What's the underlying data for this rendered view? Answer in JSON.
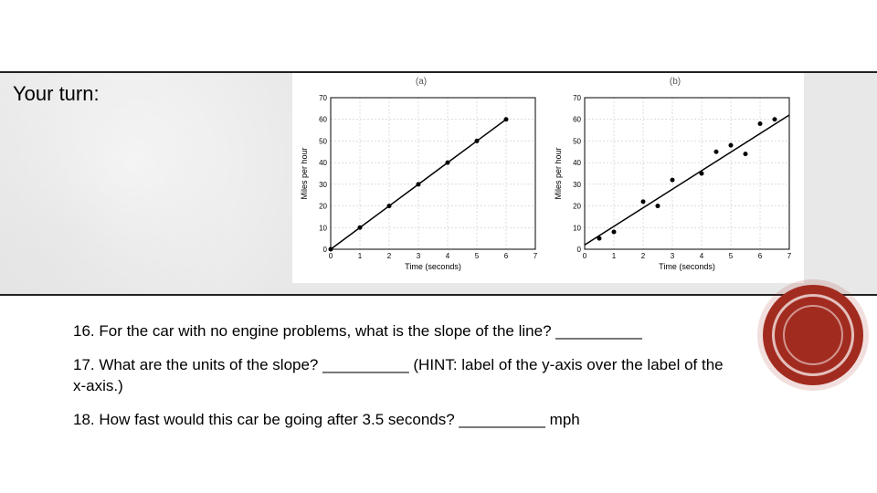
{
  "title": "Your turn:",
  "chart_a": {
    "type": "line",
    "panel_label": "(a)",
    "xlabel": "Time (seconds)",
    "ylabel": "Miles per hour",
    "xlim": [
      0,
      7
    ],
    "ylim": [
      0,
      70
    ],
    "xtick_step": 1,
    "ytick_step": 10,
    "xticks": [
      0,
      1,
      2,
      3,
      4,
      5,
      6,
      7
    ],
    "yticks": [
      0,
      10,
      20,
      30,
      40,
      50,
      60,
      70
    ],
    "line_color": "#000000",
    "marker_color": "#000000",
    "marker_size": 2.5,
    "line_width": 1.5,
    "background_color": "#ffffff",
    "grid_color": "#bbbbbb",
    "points": [
      {
        "x": 0,
        "y": 0
      },
      {
        "x": 1,
        "y": 10
      },
      {
        "x": 2,
        "y": 20
      },
      {
        "x": 3,
        "y": 30
      },
      {
        "x": 4,
        "y": 40
      },
      {
        "x": 5,
        "y": 50
      },
      {
        "x": 6,
        "y": 60
      }
    ]
  },
  "chart_b": {
    "type": "scatter-line",
    "panel_label": "(b)",
    "xlabel": "Time (seconds)",
    "ylabel": "Miles per hour",
    "xlim": [
      0,
      7
    ],
    "ylim": [
      0,
      70
    ],
    "xtick_step": 1,
    "ytick_step": 10,
    "xticks": [
      0,
      1,
      2,
      3,
      4,
      5,
      6,
      7
    ],
    "yticks": [
      0,
      10,
      20,
      30,
      40,
      50,
      60,
      70
    ],
    "line_color": "#000000",
    "marker_color": "#000000",
    "marker_size": 2.5,
    "line_width": 1.2,
    "background_color": "#ffffff",
    "grid_color": "#bbbbbb",
    "fit_line": [
      {
        "x": 0,
        "y": 2
      },
      {
        "x": 7,
        "y": 62
      }
    ],
    "points": [
      {
        "x": 0.5,
        "y": 5
      },
      {
        "x": 1,
        "y": 8
      },
      {
        "x": 2,
        "y": 22
      },
      {
        "x": 2.5,
        "y": 20
      },
      {
        "x": 3,
        "y": 32
      },
      {
        "x": 4,
        "y": 35
      },
      {
        "x": 4.5,
        "y": 45
      },
      {
        "x": 5,
        "y": 48
      },
      {
        "x": 5.5,
        "y": 44
      },
      {
        "x": 6,
        "y": 58
      },
      {
        "x": 6.5,
        "y": 60
      }
    ]
  },
  "questions": {
    "q16": "16. For the car with no engine problems, what is the slope of the line? __________",
    "q17": "17. What are the units of the slope? __________ (HINT: label of the y-axis over the label of the x-axis.)",
    "q18": "18. How fast would this car be going after 3.5 seconds? __________ mph"
  },
  "badge": {
    "fill_color": "#a22b1f",
    "ring_color": "#ffffff"
  }
}
